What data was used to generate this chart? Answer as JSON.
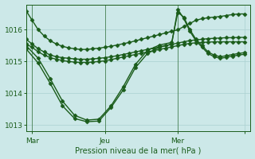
{
  "xlabel": "Pression niveau de la mer( hPa )",
  "bg_color": "#cce8e8",
  "grid_color": "#aad0d0",
  "line_color": "#1a5c1a",
  "tick_label_color": "#1a5c1a",
  "ylim": [
    1012.8,
    1016.8
  ],
  "xlim": [
    0,
    37
  ],
  "yticks": [
    1013,
    1014,
    1015,
    1016
  ],
  "xtick_positions": [
    1,
    13,
    25,
    36
  ],
  "xtick_labels": [
    "Mar",
    "Jeu",
    "Mer",
    ""
  ],
  "vlines": [
    1,
    13,
    25
  ],
  "series": [
    {
      "x": [
        0,
        1,
        2,
        3,
        4,
        5,
        6,
        7,
        8,
        9,
        10,
        11,
        12,
        13,
        14,
        15,
        16,
        17,
        18,
        19,
        20,
        21,
        22,
        23,
        24,
        25,
        26,
        27,
        28,
        29,
        30,
        31,
        32,
        33,
        34,
        35,
        36
      ],
      "y": [
        1016.6,
        1016.3,
        1016.0,
        1015.8,
        1015.65,
        1015.55,
        1015.48,
        1015.43,
        1015.4,
        1015.38,
        1015.38,
        1015.4,
        1015.42,
        1015.45,
        1015.48,
        1015.52,
        1015.56,
        1015.6,
        1015.65,
        1015.7,
        1015.75,
        1015.8,
        1015.85,
        1015.9,
        1015.95,
        1016.0,
        1016.1,
        1016.2,
        1016.3,
        1016.35,
        1016.38,
        1016.4,
        1016.42,
        1016.45,
        1016.48,
        1016.5,
        1016.5
      ]
    },
    {
      "x": [
        0,
        1,
        2,
        3,
        4,
        5,
        6,
        7,
        8,
        9,
        10,
        11,
        12,
        13,
        14,
        15,
        16,
        17,
        18,
        19,
        20,
        21,
        22,
        23,
        24,
        25,
        26,
        27,
        28,
        29,
        30,
        31,
        32,
        33,
        34,
        35,
        36
      ],
      "y": [
        1015.7,
        1015.55,
        1015.4,
        1015.3,
        1015.2,
        1015.15,
        1015.12,
        1015.1,
        1015.08,
        1015.07,
        1015.07,
        1015.08,
        1015.1,
        1015.12,
        1015.15,
        1015.18,
        1015.22,
        1015.26,
        1015.3,
        1015.34,
        1015.38,
        1015.42,
        1015.46,
        1015.5,
        1015.54,
        1015.58,
        1015.62,
        1015.66,
        1015.68,
        1015.7,
        1015.72,
        1015.73,
        1015.74,
        1015.75,
        1015.75,
        1015.76,
        1015.76
      ]
    },
    {
      "x": [
        0,
        1,
        2,
        3,
        4,
        5,
        6,
        7,
        8,
        9,
        10,
        11,
        12,
        13,
        14,
        15,
        16,
        17,
        18,
        19,
        20,
        21,
        22,
        23,
        24,
        25,
        26,
        27,
        28,
        29,
        30,
        31,
        32,
        33,
        34,
        35,
        36
      ],
      "y": [
        1015.55,
        1015.45,
        1015.3,
        1015.2,
        1015.12,
        1015.07,
        1015.03,
        1015.0,
        1014.98,
        1014.97,
        1014.97,
        1014.98,
        1015.0,
        1015.02,
        1015.06,
        1015.1,
        1015.14,
        1015.18,
        1015.22,
        1015.26,
        1015.3,
        1015.34,
        1015.38,
        1015.42,
        1015.46,
        1015.5,
        1015.54,
        1015.57,
        1015.59,
        1015.6,
        1015.61,
        1015.62,
        1015.62,
        1015.62,
        1015.62,
        1015.62,
        1015.62
      ]
    },
    {
      "x": [
        0,
        2,
        4,
        6,
        8,
        10,
        12,
        14,
        16,
        18,
        20,
        22,
        24,
        25,
        26,
        27,
        28,
        29,
        30,
        31,
        32,
        33,
        34,
        35,
        36
      ],
      "y": [
        1015.5,
        1015.1,
        1014.45,
        1013.75,
        1013.3,
        1013.15,
        1013.18,
        1013.6,
        1014.2,
        1014.9,
        1015.35,
        1015.52,
        1015.6,
        1016.55,
        1016.4,
        1016.0,
        1015.7,
        1015.5,
        1015.3,
        1015.2,
        1015.15,
        1015.18,
        1015.22,
        1015.25,
        1015.28
      ]
    },
    {
      "x": [
        0,
        2,
        4,
        6,
        8,
        10,
        12,
        14,
        16,
        18,
        20,
        22,
        24,
        25,
        26,
        27,
        28,
        29,
        30,
        31,
        32,
        33,
        34,
        35,
        36
      ],
      "y": [
        1015.4,
        1014.95,
        1014.3,
        1013.6,
        1013.2,
        1013.1,
        1013.12,
        1013.55,
        1014.1,
        1014.8,
        1015.25,
        1015.45,
        1015.55,
        1016.65,
        1016.35,
        1015.95,
        1015.65,
        1015.45,
        1015.25,
        1015.15,
        1015.1,
        1015.13,
        1015.17,
        1015.2,
        1015.23
      ]
    }
  ],
  "marker": "D",
  "marker_size": 2.5,
  "linewidth": 1.0
}
